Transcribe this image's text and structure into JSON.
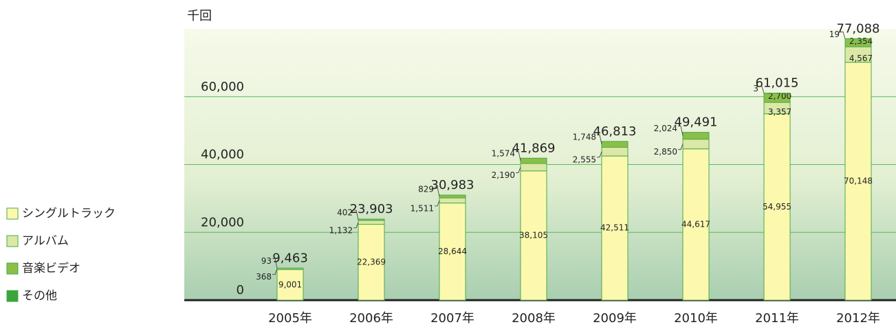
{
  "chart_data": {
    "type": "stacked_bar",
    "y_unit": "千回",
    "categories": [
      "2005年",
      "2006年",
      "2007年",
      "2008年",
      "2009年",
      "2010年",
      "2011年",
      "2012年"
    ],
    "series": [
      {
        "name": "シングルトラック",
        "color": "#fcf9ae",
        "values": [
          9001,
          22369,
          28644,
          38105,
          42511,
          44617,
          54955,
          70148
        ],
        "value_labels": [
          "9,001",
          "22,369",
          "28,644",
          "38,105",
          "42,511",
          "44,617",
          "54,955",
          "70,148"
        ]
      },
      {
        "name": "アルバム",
        "color": "#dbe8a6",
        "values": [
          368,
          1132,
          1511,
          2190,
          2555,
          2850,
          3357,
          4567
        ],
        "value_labels": [
          "368",
          "1,132",
          "1,511",
          "2,190",
          "2,555",
          "2,850",
          "3,357",
          "4,567"
        ]
      },
      {
        "name": "音楽ビデオ",
        "color": "#8bbf48",
        "values": [
          93,
          402,
          829,
          1574,
          1748,
          2024,
          2700,
          2354
        ],
        "value_labels": [
          "93",
          "402",
          "829",
          "1,574",
          "1,748",
          "2,024",
          "2,700",
          "2,354"
        ]
      },
      {
        "name": "その他",
        "color": "#3aa53a",
        "values": [
          null,
          null,
          null,
          null,
          null,
          null,
          3,
          19
        ],
        "value_labels": [
          null,
          null,
          null,
          null,
          null,
          null,
          "3",
          "19"
        ]
      }
    ],
    "totals": [
      9463,
      23903,
      30983,
      41869,
      46813,
      49491,
      61015,
      77088
    ],
    "total_labels": [
      "9,463",
      "23,903",
      "30,983",
      "41,869",
      "46,813",
      "49,491",
      "61,015",
      "77,088"
    ],
    "ylim": [
      0,
      80000
    ],
    "yticks": [
      0,
      {
        "value": 20000,
        "label": "20,000"
      },
      {
        "value": 40000,
        "label": "40,000"
      },
      {
        "value": 60000,
        "label": "60,000"
      }
    ],
    "grid": true
  }
}
